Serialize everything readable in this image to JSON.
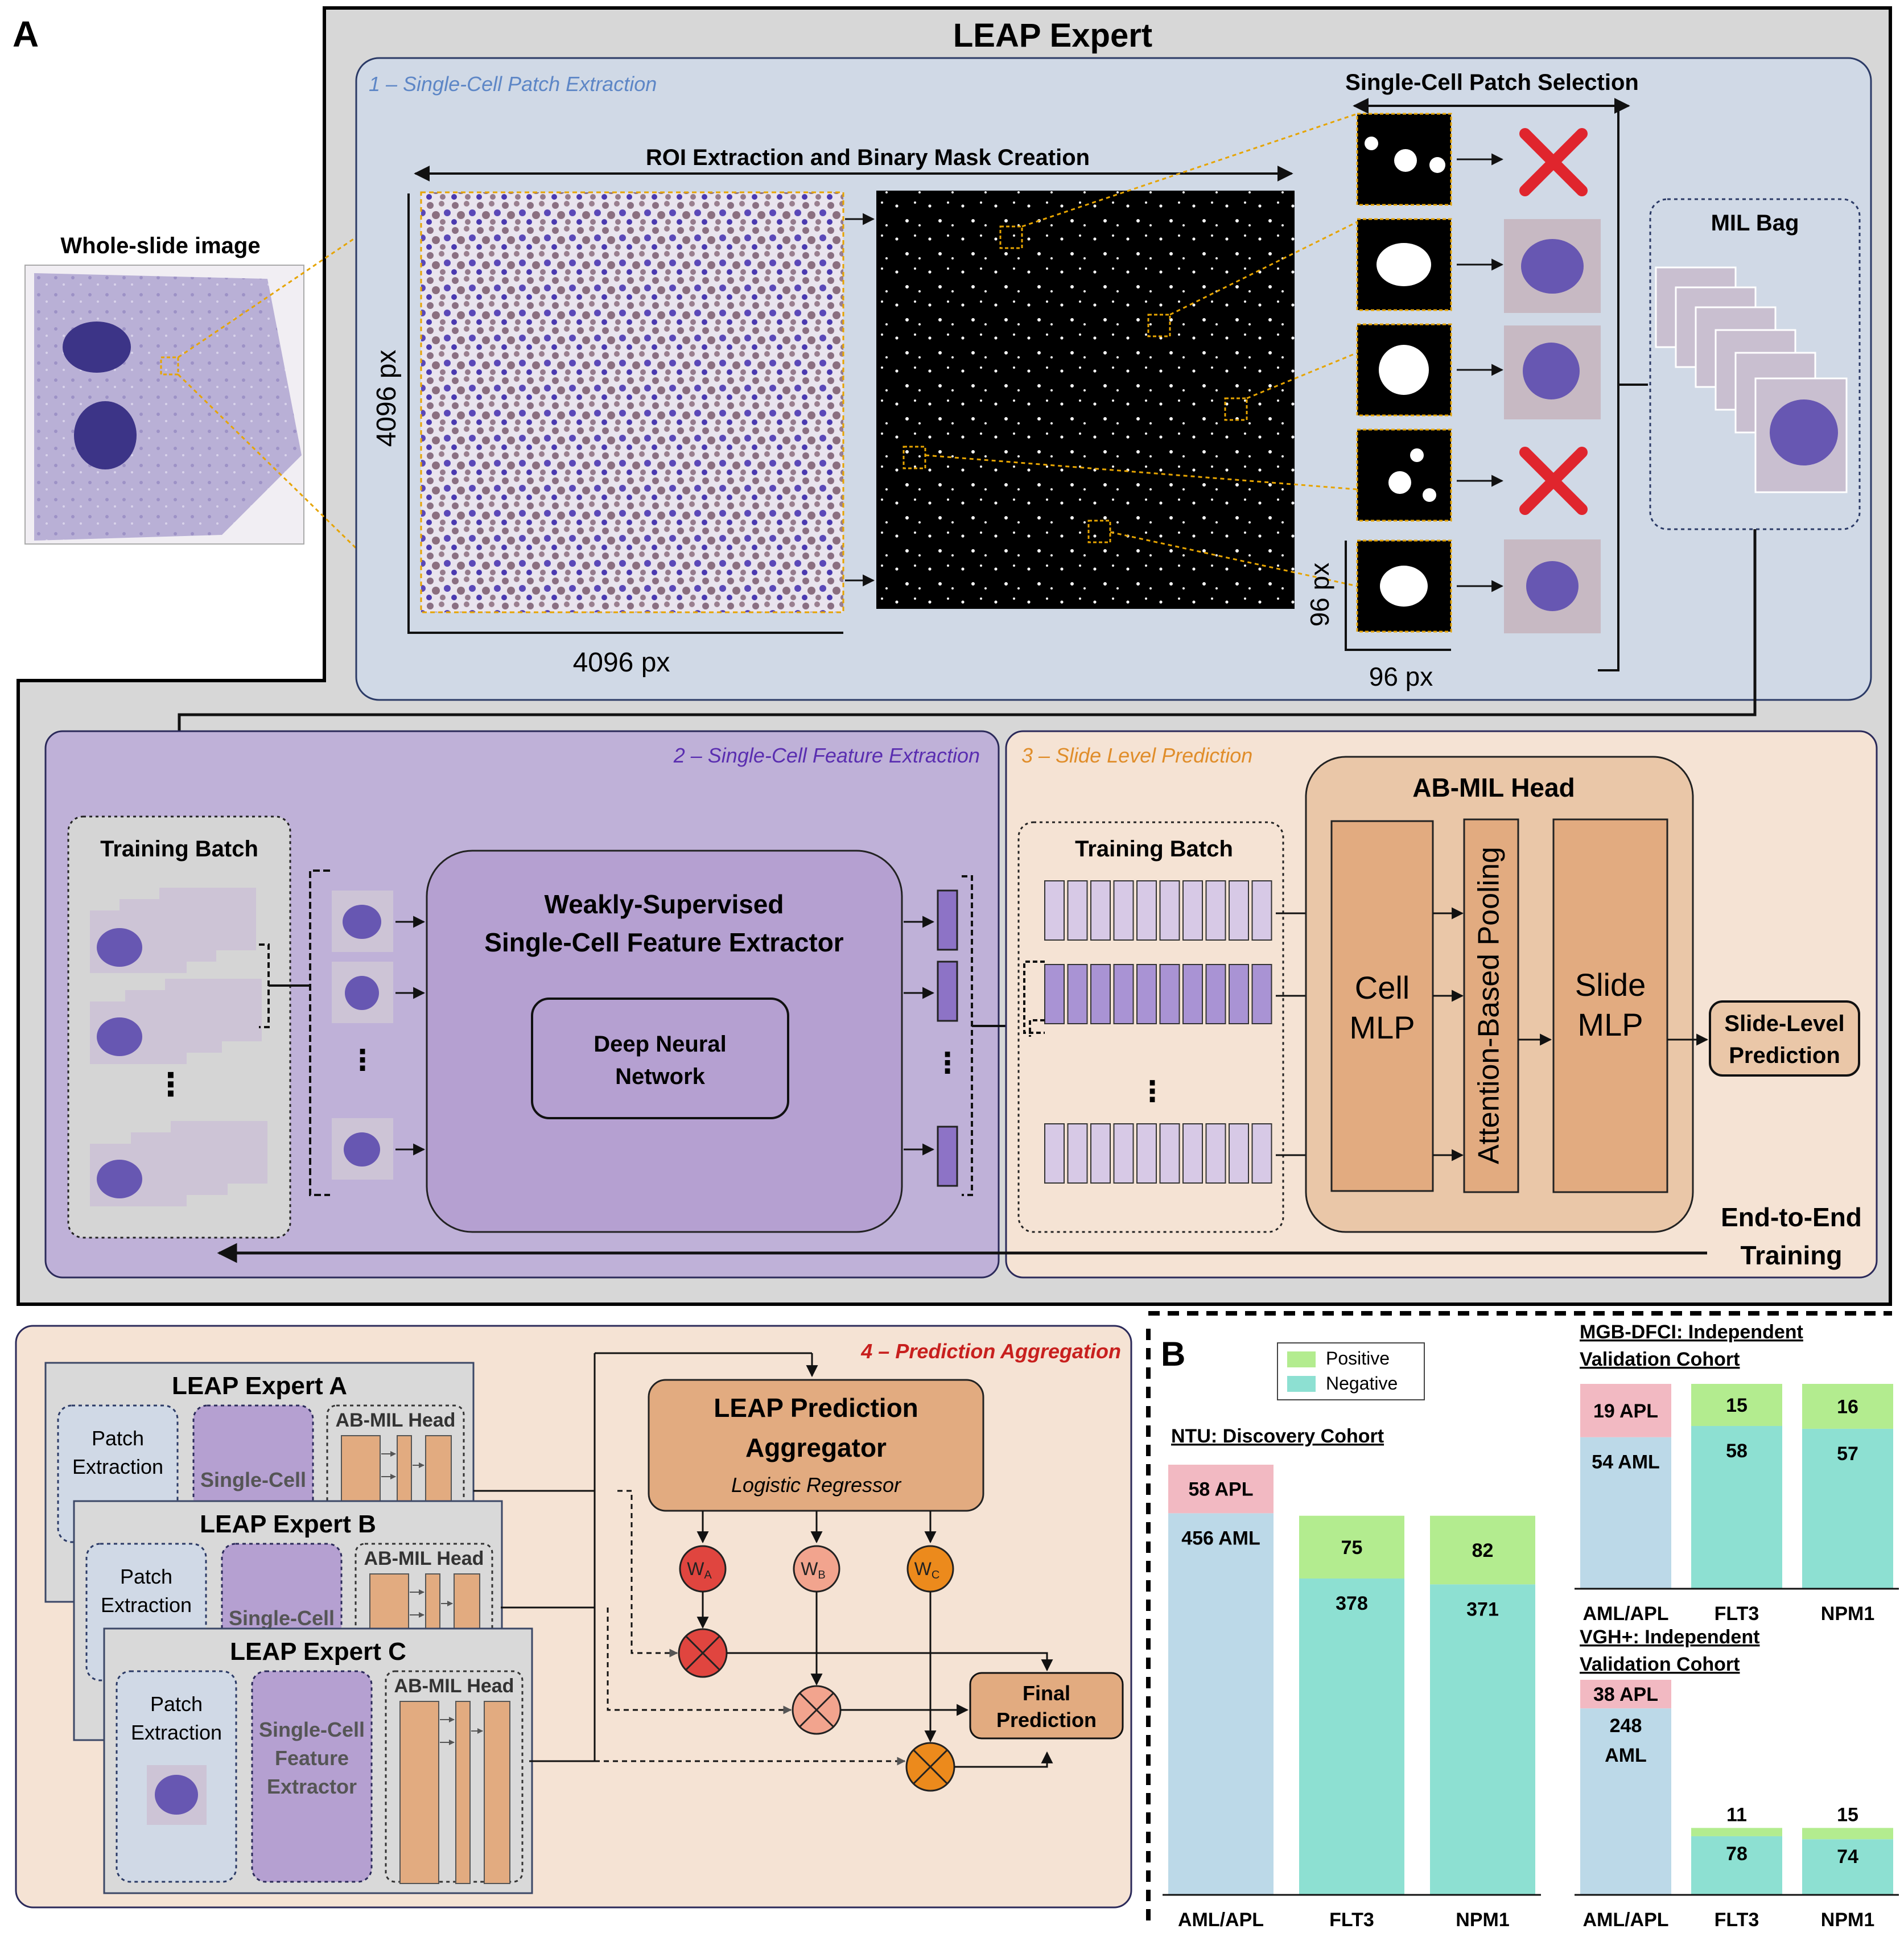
{
  "panel_labels": {
    "a": "A",
    "b": "B"
  },
  "expert": {
    "title": "LEAP Expert",
    "stage1": {
      "title": "1 – Single-Cell Patch Extraction",
      "wsi_label": "Whole-slide image",
      "roi_label": "ROI Extraction and Binary Mask Creation",
      "patch_select_label": "Single-Cell Patch Selection",
      "dim_y": "4096 px",
      "dim_x": "4096 px",
      "patch_dim_y": "96 px",
      "patch_dim_x": "96 px",
      "mil_bag": "MIL Bag"
    },
    "stage2": {
      "title": "2 – Single-Cell Feature Extraction",
      "training_batch": "Training Batch",
      "extractor_line1": "Weakly-Supervised",
      "extractor_line2": "Single-Cell Feature Extractor",
      "dnn_line1": "Deep Neural",
      "dnn_line2": "Network"
    },
    "stage3": {
      "title": "3 – Slide Level  Prediction",
      "training_batch": "Training Batch",
      "head_title": "AB-MIL Head",
      "cell_mlp_1": "Cell",
      "cell_mlp_2": "MLP",
      "pooling": "Attention-Based Pooling",
      "slide_mlp_1": "Slide",
      "slide_mlp_2": "MLP",
      "slide_pred_1": "Slide-Level",
      "slide_pred_2": "Prediction",
      "e2e_1": "End-to-End",
      "e2e_2": "Training"
    }
  },
  "aggregation": {
    "title": "4 – Prediction Aggregation",
    "experts": [
      {
        "name": "LEAP Expert A",
        "patch_1": "Patch",
        "patch_2": "Extraction",
        "sc": "Single-Cell",
        "head": "AB-MIL Head"
      },
      {
        "name": "LEAP Expert B",
        "patch_1": "Patch",
        "patch_2": "Extraction",
        "sc": "Single-Cell",
        "head": "AB-MIL Head"
      },
      {
        "name": "LEAP Expert C",
        "patch_1": "Patch",
        "patch_2": "Extraction",
        "sc_1": "Single-Cell",
        "sc_2": "Feature",
        "sc_3": "Extractor",
        "head": "AB-MIL Head"
      }
    ],
    "aggregator_1": "LEAP Prediction",
    "aggregator_2": "Aggregator",
    "aggregator_sub": "Logistic Regressor",
    "weights": [
      {
        "base": "W",
        "sub": "A",
        "color": "#e0453f"
      },
      {
        "base": "W",
        "sub": "B",
        "color": "#f2a48e"
      },
      {
        "base": "W",
        "sub": "C",
        "color": "#ec8a1c"
      }
    ],
    "final_1": "Final",
    "final_2": "Prediction"
  },
  "legend": {
    "positive": "Positive",
    "negative": "Negative"
  },
  "colors": {
    "positive": "#b3ec8f",
    "negative": "#8de0d2",
    "apl": "#f2b9c2",
    "aml": "#bcd9e8",
    "stage1_bg": "#d0d9e6",
    "stage2_bg": "#bfb1d8",
    "stage3_bg": "#f5e3d4",
    "orange": "#e2ab80",
    "purple": "#b5a0d1"
  },
  "chart_data": [
    {
      "type": "bar",
      "title": "NTU: Discovery Cohort",
      "categories": [
        "AML/APL",
        "FLT3",
        "NPM1"
      ],
      "series": [
        {
          "labels": [
            "456 AML",
            "378",
            "371"
          ],
          "values": [
            456,
            378,
            371
          ]
        },
        {
          "labels": [
            "58 APL",
            "75",
            "82"
          ],
          "values": [
            58,
            75,
            82
          ]
        }
      ]
    },
    {
      "type": "bar",
      "title": "MGB-DFCI: Independent Validation Cohort",
      "title_1": "MGB-DFCI: Independent",
      "title_2": "Validation Cohort",
      "categories": [
        "AML/APL",
        "FLT3",
        "NPM1"
      ],
      "series": [
        {
          "labels": [
            "54 AML",
            "58",
            "57"
          ],
          "values": [
            54,
            58,
            57
          ]
        },
        {
          "labels": [
            "19 APL",
            "15",
            "16"
          ],
          "values": [
            19,
            15,
            16
          ]
        }
      ]
    },
    {
      "type": "bar",
      "title": "VGH+: Independent Validation Cohort",
      "title_1": "VGH+: Independent",
      "title_2": "Validation Cohort",
      "categories": [
        "AML/APL",
        "FLT3",
        "NPM1"
      ],
      "series": [
        {
          "labels": [
            "248",
            "78",
            "74"
          ],
          "label2": "AML",
          "values": [
            248,
            78,
            74
          ]
        },
        {
          "labels": [
            "38 APL",
            "11",
            "15"
          ],
          "values": [
            38,
            11,
            15
          ]
        }
      ]
    }
  ]
}
